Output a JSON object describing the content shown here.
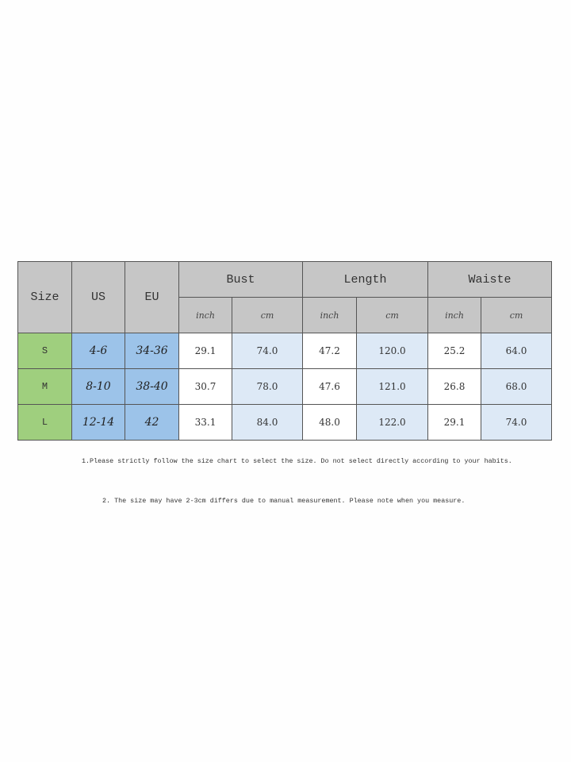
{
  "headers": {
    "size": "Size",
    "us": "US",
    "eu": "EU",
    "groups": [
      "Bust",
      "Length",
      "Waiste"
    ],
    "units": [
      "inch",
      "cm"
    ]
  },
  "colors": {
    "header": "#c6c6c6",
    "size_col": "#9fcf7e",
    "us_eu_cols": "#9cc3e9",
    "cm_cols": "#dde9f6"
  },
  "rows": [
    {
      "size": "S",
      "us": "4-6",
      "eu": "34-36",
      "values": [
        "29.1",
        "74.0",
        "47.2",
        "120.0",
        "25.2",
        "64.0"
      ]
    },
    {
      "size": "M",
      "us": "8-10",
      "eu": "38-40",
      "values": [
        "30.7",
        "78.0",
        "47.6",
        "121.0",
        "26.8",
        "68.0"
      ]
    },
    {
      "size": "L",
      "us": "12-14",
      "eu": "42",
      "values": [
        "33.1",
        "84.0",
        "48.0",
        "122.0",
        "29.1",
        "74.0"
      ]
    }
  ],
  "notes": [
    "1.Please strictly follow the size chart to select the size. Do not select directly according to your habits.",
    "2. The size may have 2-3cm differs due to manual measurement. Please note when you measure."
  ]
}
